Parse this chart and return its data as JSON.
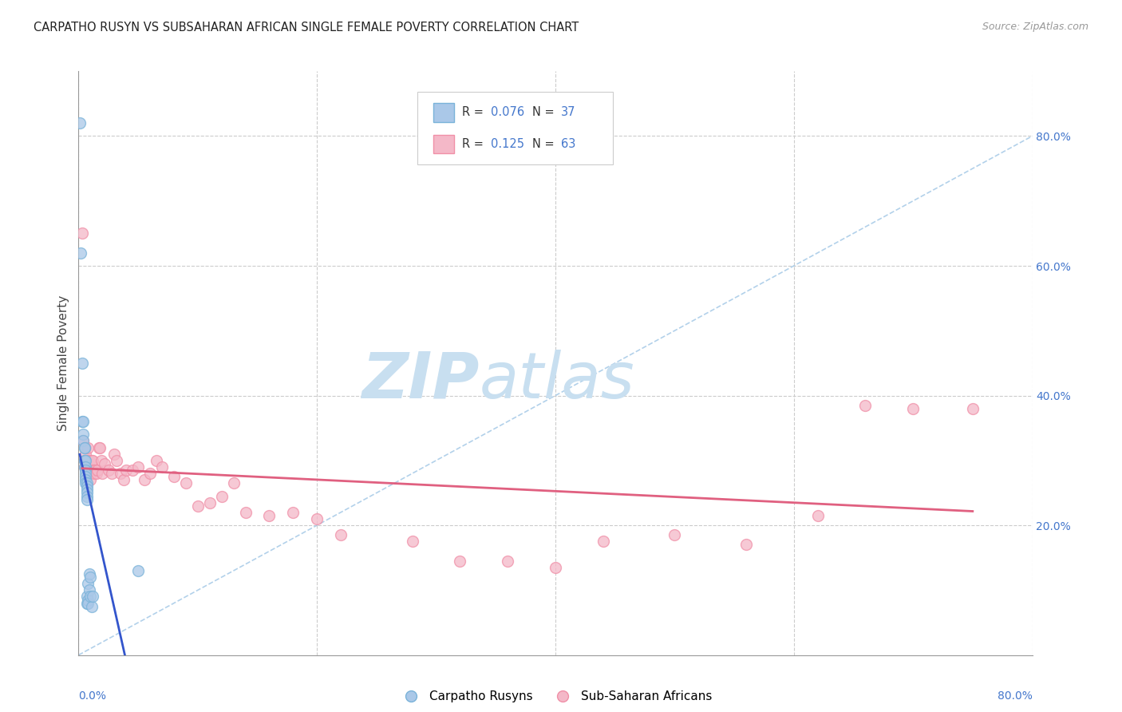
{
  "title": "CARPATHO RUSYN VS SUBSAHARAN AFRICAN SINGLE FEMALE POVERTY CORRELATION CHART",
  "source": "Source: ZipAtlas.com",
  "ylabel": "Single Female Poverty",
  "ytick_labels": [
    "20.0%",
    "40.0%",
    "60.0%",
    "80.0%"
  ],
  "ytick_values": [
    0.2,
    0.4,
    0.6,
    0.8
  ],
  "xlim": [
    0.0,
    0.8
  ],
  "ylim": [
    0.0,
    0.9
  ],
  "legend_bottom": [
    "Carpatho Rusyns",
    "Sub-Saharan Africans"
  ],
  "blue_color": "#7ab3d9",
  "pink_color": "#f090a8",
  "blue_fill": "#aac8e8",
  "pink_fill": "#f4b8c8",
  "diagonal_color": "#aacce8",
  "blue_line_color": "#3355cc",
  "pink_line_color": "#e06080",
  "watermark_zip": "ZIP",
  "watermark_atlas": "atlas",
  "watermark_color": "#c8dff0",
  "background_color": "#ffffff",
  "grid_color": "#cccccc",
  "tick_color": "#4477cc",
  "R_blue_str": "0.076",
  "N_blue_str": "37",
  "R_pink_str": "0.125",
  "N_pink_str": "63",
  "blue_points_x": [
    0.001,
    0.002,
    0.003,
    0.003,
    0.004,
    0.004,
    0.004,
    0.005,
    0.005,
    0.005,
    0.005,
    0.005,
    0.006,
    0.006,
    0.006,
    0.006,
    0.006,
    0.006,
    0.006,
    0.007,
    0.007,
    0.007,
    0.007,
    0.007,
    0.007,
    0.007,
    0.007,
    0.008,
    0.008,
    0.008,
    0.009,
    0.009,
    0.01,
    0.01,
    0.011,
    0.012,
    0.05
  ],
  "blue_points_y": [
    0.82,
    0.62,
    0.45,
    0.36,
    0.36,
    0.34,
    0.33,
    0.32,
    0.32,
    0.3,
    0.3,
    0.29,
    0.3,
    0.29,
    0.285,
    0.28,
    0.275,
    0.27,
    0.265,
    0.265,
    0.26,
    0.255,
    0.25,
    0.245,
    0.24,
    0.09,
    0.08,
    0.085,
    0.08,
    0.11,
    0.125,
    0.1,
    0.12,
    0.09,
    0.075,
    0.09,
    0.13
  ],
  "pink_points_x": [
    0.003,
    0.004,
    0.005,
    0.005,
    0.006,
    0.006,
    0.006,
    0.007,
    0.007,
    0.008,
    0.008,
    0.009,
    0.009,
    0.01,
    0.01,
    0.01,
    0.011,
    0.012,
    0.012,
    0.013,
    0.014,
    0.015,
    0.016,
    0.017,
    0.018,
    0.019,
    0.02,
    0.022,
    0.025,
    0.028,
    0.03,
    0.032,
    0.035,
    0.038,
    0.04,
    0.045,
    0.05,
    0.055,
    0.06,
    0.065,
    0.07,
    0.08,
    0.09,
    0.1,
    0.11,
    0.12,
    0.13,
    0.14,
    0.16,
    0.18,
    0.2,
    0.22,
    0.28,
    0.32,
    0.36,
    0.4,
    0.44,
    0.5,
    0.56,
    0.62,
    0.66,
    0.7,
    0.75
  ],
  "pink_points_y": [
    0.65,
    0.33,
    0.3,
    0.29,
    0.32,
    0.31,
    0.3,
    0.3,
    0.29,
    0.32,
    0.3,
    0.3,
    0.285,
    0.285,
    0.28,
    0.27,
    0.3,
    0.3,
    0.285,
    0.28,
    0.285,
    0.28,
    0.285,
    0.32,
    0.32,
    0.3,
    0.28,
    0.295,
    0.285,
    0.28,
    0.31,
    0.3,
    0.28,
    0.27,
    0.285,
    0.285,
    0.29,
    0.27,
    0.28,
    0.3,
    0.29,
    0.275,
    0.265,
    0.23,
    0.235,
    0.245,
    0.265,
    0.22,
    0.215,
    0.22,
    0.21,
    0.185,
    0.175,
    0.145,
    0.145,
    0.135,
    0.175,
    0.185,
    0.17,
    0.215,
    0.385,
    0.38,
    0.38
  ]
}
